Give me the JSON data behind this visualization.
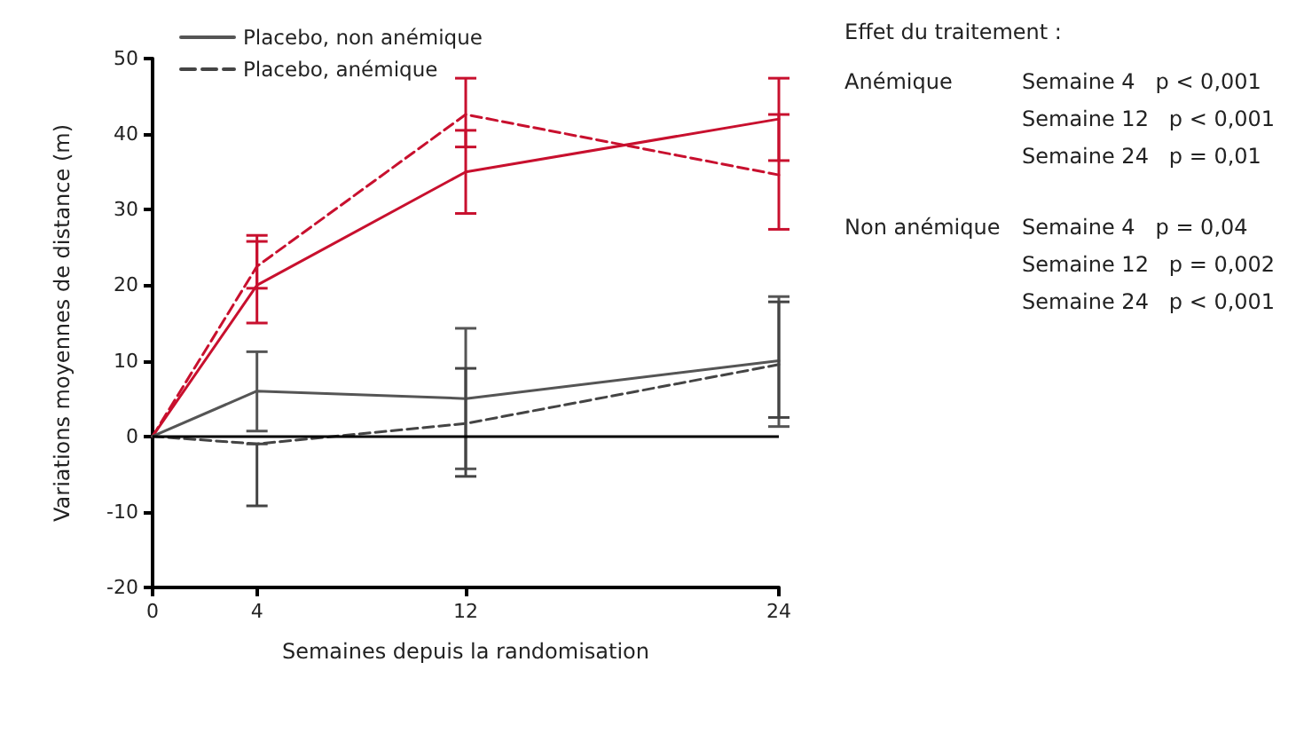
{
  "chart_data": {
    "type": "line",
    "xlabel": "Semaines depuis la randomisation",
    "ylabel": "Variations moyennes de distance (m)",
    "x": [
      0,
      4,
      12,
      24
    ],
    "xlim": [
      0,
      24
    ],
    "xticks": [
      0,
      4,
      12,
      24
    ],
    "ylim": [
      -20,
      50
    ],
    "yticks": [
      -20,
      -10,
      0,
      10,
      20,
      30,
      40,
      50
    ],
    "grid": false,
    "legend": "top left",
    "marker": "none",
    "series": [
      {
        "color": "#c8102e",
        "line_style": "solid",
        "values": [
          0,
          20,
          35,
          42
        ],
        "errors": [
          null,
          [
            15,
            25.8
          ],
          [
            29.5,
            40.5
          ],
          [
            36.5,
            47.4
          ]
        ]
      },
      {
        "color": "#c8102e",
        "line_style": "dashed",
        "values": [
          0,
          22.5,
          42.6,
          34.6
        ],
        "errors": [
          null,
          [
            19.6,
            26.6
          ],
          [
            38.3,
            47.4
          ],
          [
            27.4,
            42.6
          ]
        ]
      },
      {
        "name": "Placebo, non anémique",
        "color": "#555555",
        "line_style": "solid",
        "values": [
          0,
          6,
          5,
          10
        ],
        "errors": [
          null,
          [
            0.7,
            11.2
          ],
          [
            -4.3,
            14.3
          ],
          [
            1.3,
            18.5
          ]
        ]
      },
      {
        "name": "Placebo, anémique",
        "color": "#444444",
        "line_style": "dashed",
        "values": [
          0,
          -1,
          1.7,
          9.5
        ],
        "errors": [
          null,
          [
            -9.2,
            -1
          ],
          [
            -5.3,
            9
          ],
          [
            2.5,
            17.8
          ]
        ]
      }
    ],
    "ref_lines": [
      {
        "axis": "y",
        "value": 0,
        "color": "#000000"
      }
    ],
    "annotations": [
      "Effet du traitement :",
      "Anémique",
      "Semaine 4   p < 0,001",
      "Semaine 12   p < 0,001",
      "Semaine 24   p = 0,01",
      "Non anémique",
      "Semaine 4   p = 0,04",
      "Semaine 12   p = 0,002",
      "Semaine 24   p < 0,001"
    ]
  }
}
